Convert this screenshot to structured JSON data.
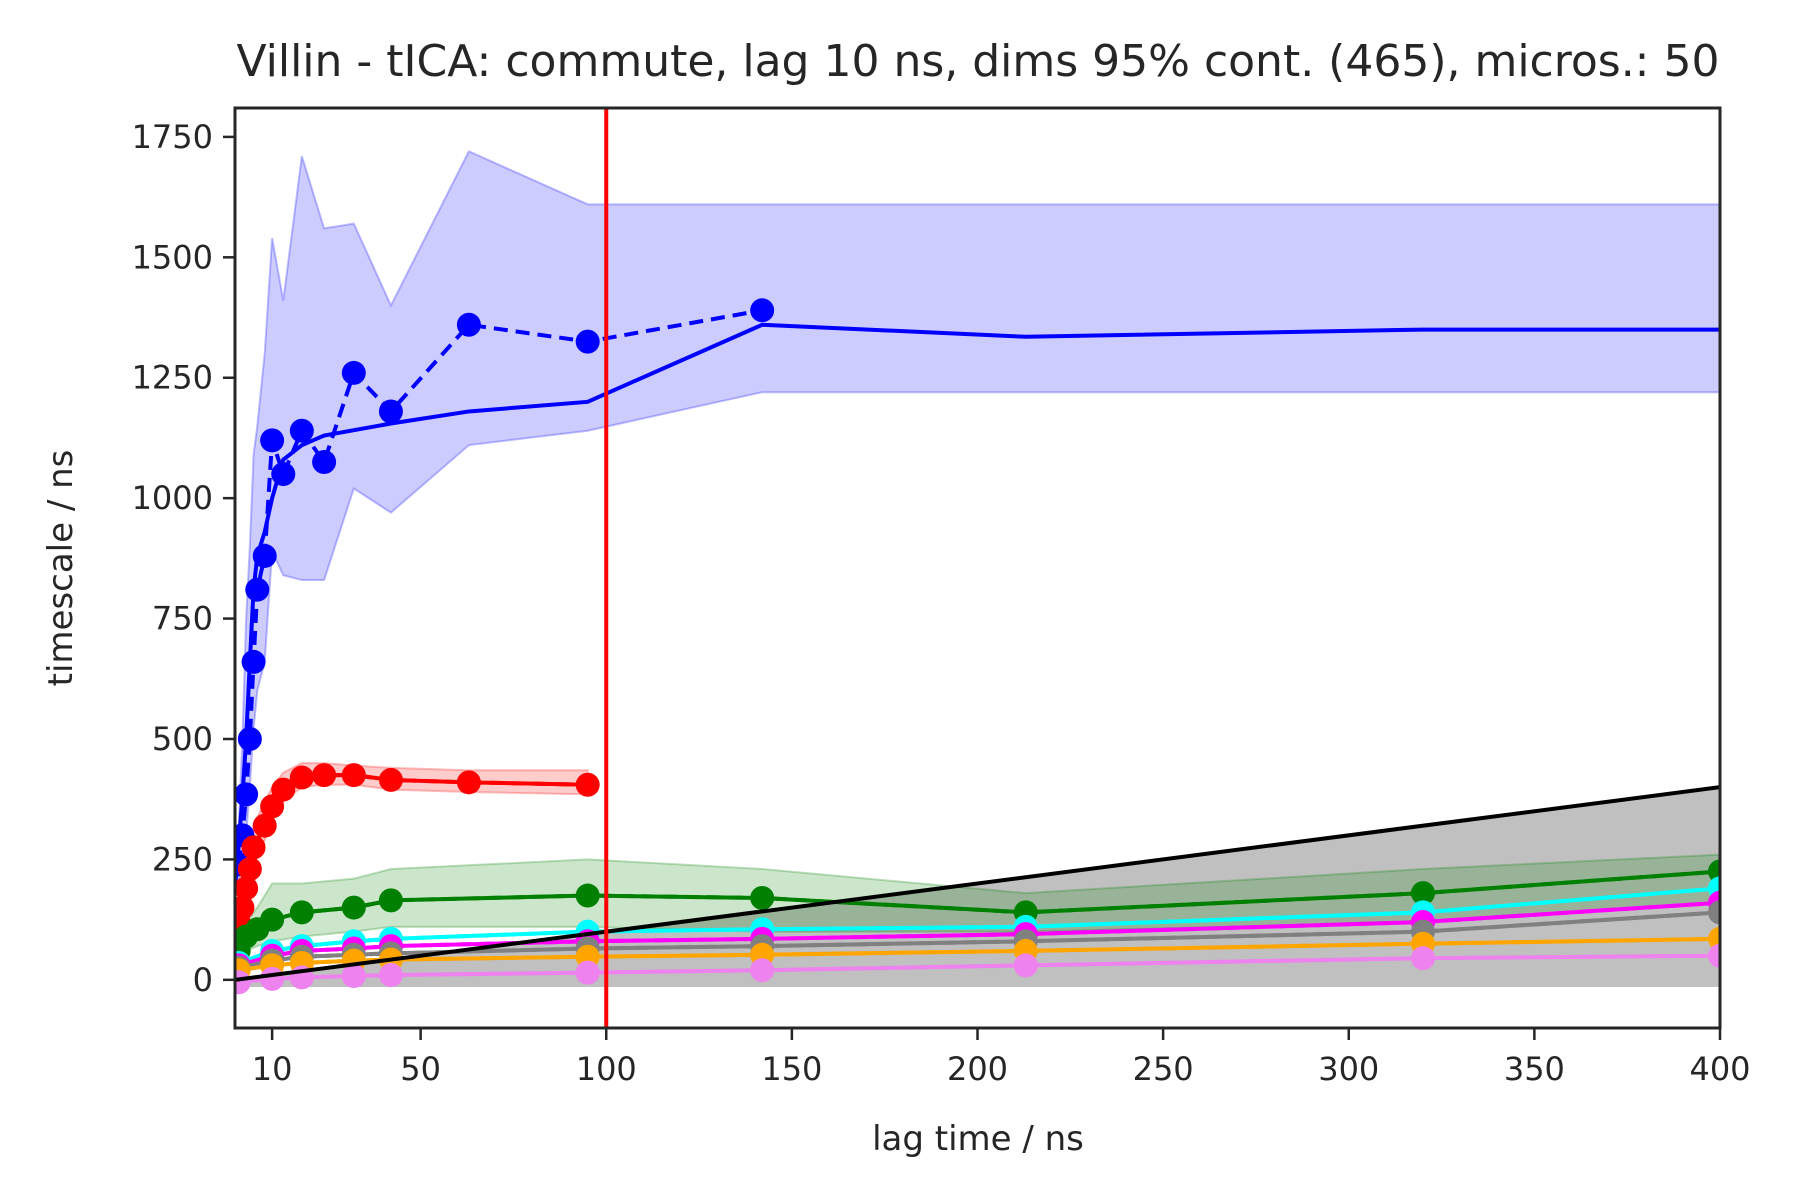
{
  "chart_data": {
    "type": "line",
    "title": "Villin - tICA: commute, lag 10 ns, dims 95% cont. (465), micros.: 50",
    "xlabel": "lag time / ns",
    "ylabel": "timescale / ns",
    "xlim": [
      0,
      400
    ],
    "ylim": [
      -100,
      1810
    ],
    "xticks": [
      10,
      50,
      100,
      150,
      200,
      250,
      300,
      350,
      400
    ],
    "yticks": [
      0,
      250,
      500,
      750,
      1000,
      1250,
      1500,
      1750
    ],
    "grid": false,
    "legend": "none",
    "vline": {
      "x": 100,
      "color": "#ff0000"
    },
    "diagonal": {
      "x": [
        0,
        400
      ],
      "y": [
        0,
        400
      ],
      "color": "#000000",
      "shade_color": "#c0c0c0",
      "shade_y_min": -15
    },
    "x": [
      1,
      2,
      3,
      4,
      5,
      6,
      8,
      10,
      13,
      18,
      24,
      32,
      42,
      63,
      95,
      142,
      213,
      320,
      400
    ],
    "series": [
      {
        "color": "#0000ff",
        "values": [
          240,
          300,
          385,
          500,
          660,
          810,
          880,
          1120,
          1050,
          1140,
          1075,
          1260,
          1180,
          1360,
          1325,
          1390,
          null,
          null,
          null
        ],
        "points_x": [
          1,
          2,
          3,
          4,
          5,
          6,
          8,
          10,
          13,
          18,
          24,
          32,
          42,
          63,
          95,
          142,
          213,
          320,
          400
        ],
        "points_y": [
          240,
          300,
          385,
          500,
          660,
          810,
          880,
          1120,
          1050,
          1140,
          1075,
          1260,
          1180,
          1360,
          1325,
          1390,
          null,
          null,
          null
        ],
        "fit_x": [
          0,
          1,
          2,
          3,
          4,
          5,
          6,
          8,
          10,
          13,
          18,
          24,
          42,
          63,
          95,
          142,
          213,
          320,
          400
        ],
        "fit_y": [
          190,
          280,
          380,
          500,
          660,
          810,
          880,
          930,
          1000,
          1080,
          1110,
          1130,
          1155,
          1180,
          1200,
          1360,
          1335,
          1350,
          1350
        ],
        "band_upper": [
          320,
          500,
          750,
          900,
          1090,
          1150,
          1300,
          1540,
          1410,
          1710,
          1560,
          1570,
          1400,
          1720,
          1610,
          1610,
          1610,
          1610,
          1610
        ],
        "band_lower": [
          120,
          220,
          300,
          400,
          520,
          600,
          660,
          890,
          840,
          830,
          830,
          1020,
          970,
          1110,
          1140,
          1220,
          1220,
          1220,
          1220
        ]
      },
      {
        "color": "#ff0000",
        "points_x": [
          1,
          2,
          3,
          4,
          5,
          8,
          10,
          13,
          18,
          24,
          32,
          42,
          63,
          95,
          142,
          213,
          320,
          400
        ],
        "points_y": [
          120,
          150,
          190,
          230,
          275,
          320,
          360,
          395,
          420,
          425,
          425,
          415,
          410,
          405,
          null,
          null,
          null,
          null
        ],
        "band_upper": [
          160,
          190,
          230,
          270,
          320,
          370,
          400,
          430,
          450,
          450,
          445,
          440,
          435,
          435,
          null,
          null,
          null,
          null
        ],
        "band_lower": [
          90,
          120,
          150,
          190,
          240,
          290,
          330,
          370,
          400,
          405,
          405,
          395,
          390,
          385,
          null,
          null,
          null,
          null
        ]
      },
      {
        "color": "#008000",
        "points_x": [
          1,
          3,
          6,
          10,
          18,
          32,
          42,
          95,
          142,
          213,
          320,
          400
        ],
        "points_y": [
          60,
          90,
          105,
          125,
          140,
          150,
          165,
          175,
          170,
          140,
          180,
          225
        ],
        "band_upper": [
          80,
          120,
          150,
          200,
          200,
          210,
          230,
          250,
          230,
          180,
          230,
          260
        ],
        "band_lower": [
          40,
          60,
          70,
          80,
          90,
          100,
          110,
          110,
          100,
          100,
          120,
          160
        ]
      },
      {
        "color": "#00ffff",
        "points_x": [
          1,
          10,
          18,
          32,
          42,
          95,
          142,
          213,
          320,
          400
        ],
        "points_y": [
          35,
          60,
          70,
          80,
          85,
          100,
          105,
          110,
          140,
          190
        ]
      },
      {
        "color": "#ff00ff",
        "points_x": [
          1,
          10,
          18,
          32,
          42,
          95,
          142,
          213,
          320,
          400
        ],
        "points_y": [
          30,
          50,
          60,
          65,
          70,
          80,
          85,
          95,
          120,
          160
        ]
      },
      {
        "color": "#808080",
        "points_x": [
          1,
          10,
          18,
          32,
          42,
          95,
          142,
          213,
          320,
          400
        ],
        "points_y": [
          25,
          40,
          48,
          52,
          55,
          65,
          70,
          80,
          100,
          140
        ]
      },
      {
        "color": "#ffa500",
        "points_x": [
          1,
          10,
          18,
          32,
          42,
          95,
          142,
          213,
          320,
          400
        ],
        "points_y": [
          20,
          30,
          35,
          40,
          42,
          48,
          52,
          60,
          75,
          85
        ]
      },
      {
        "color": "#ee82ee",
        "points_x": [
          1,
          10,
          18,
          32,
          42,
          95,
          142,
          213,
          320,
          400
        ],
        "points_y": [
          -5,
          2,
          5,
          8,
          10,
          15,
          20,
          30,
          45,
          50
        ]
      }
    ]
  }
}
